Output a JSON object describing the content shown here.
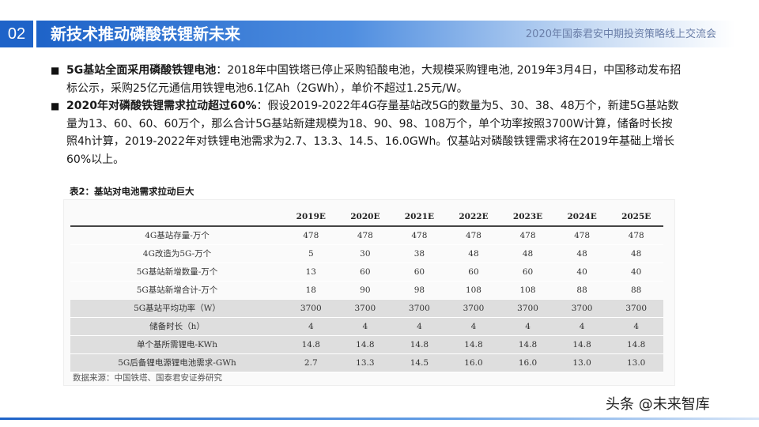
{
  "header": {
    "section_number": "02",
    "title": "新技术推动磷酸铁锂新未来",
    "event": "2020年国泰君安中期投资策略线上交流会"
  },
  "bullets": [
    {
      "marker": "■",
      "lead": "5G基站全面采用磷酸铁锂电池",
      "text": "：2018年中国铁塔已停止采购铅酸电池，大规模采购锂电池, 2019年3月4日，中国移动发布招标公示，采购25亿元通信用铁锂电池6.1亿Ah（2GWh），单价不超过1.25元/W。"
    },
    {
      "marker": "■",
      "lead": "2020年对磷酸铁锂需求拉动超过60%",
      "text": "：假设2019-2022年4G存量基站改5G的数量为5、30、38、48万个，新建5G基站数量为13、60、60、60万个，那么合计5G基站新建规模为18、90、98、108万个，单个功率按照3700W计算，储备时长按照4h计算，2019-2022年对铁锂电池需求为2.7、13.3、14.5、16.0GWh。仅基站对磷酸铁锂需求将在2019年基础上增长60%以上。"
    }
  ],
  "table": {
    "caption": "表2：基站对电池需求拉动巨大",
    "columns": [
      "2019E",
      "2020E",
      "2021E",
      "2022E",
      "2023E",
      "2024E",
      "2025E"
    ],
    "rows": [
      {
        "label": "4G基站存量-万个",
        "values": [
          "478",
          "478",
          "478",
          "478",
          "478",
          "478",
          "478"
        ],
        "shaded": false
      },
      {
        "label": "4G改造为5G-万个",
        "values": [
          "5",
          "30",
          "38",
          "48",
          "48",
          "48",
          "48"
        ],
        "shaded": false
      },
      {
        "label": "5G基站新增数量-万个",
        "values": [
          "13",
          "60",
          "60",
          "60",
          "60",
          "40",
          "40"
        ],
        "shaded": false
      },
      {
        "label": "5G基站新增合计-万个",
        "values": [
          "18",
          "90",
          "98",
          "108",
          "108",
          "88",
          "88"
        ],
        "shaded": false
      },
      {
        "label": "5G基站平均功率（W）",
        "values": [
          "3700",
          "3700",
          "3700",
          "3700",
          "3700",
          "3700",
          "3700"
        ],
        "shaded": true
      },
      {
        "label": "储备时长（h）",
        "values": [
          "4",
          "4",
          "4",
          "4",
          "4",
          "4",
          "4"
        ],
        "shaded": true
      },
      {
        "label": "单个基所需锂电-KWh",
        "values": [
          "14.8",
          "14.8",
          "14.8",
          "14.8",
          "14.8",
          "14.8",
          "14.8"
        ],
        "shaded": true
      },
      {
        "label": "5G后备锂电源锂电池需求-GWh",
        "values": [
          "2.7",
          "13.3",
          "14.5",
          "16.0",
          "16.0",
          "13.0",
          "13.0"
        ],
        "shaded": true
      }
    ],
    "source": "数据来源：中国铁塔、国泰君安证券研究"
  },
  "watermark": "头条 @未来智库",
  "colors": {
    "accent": "#1e63c8",
    "table_shade": "#dedede"
  }
}
